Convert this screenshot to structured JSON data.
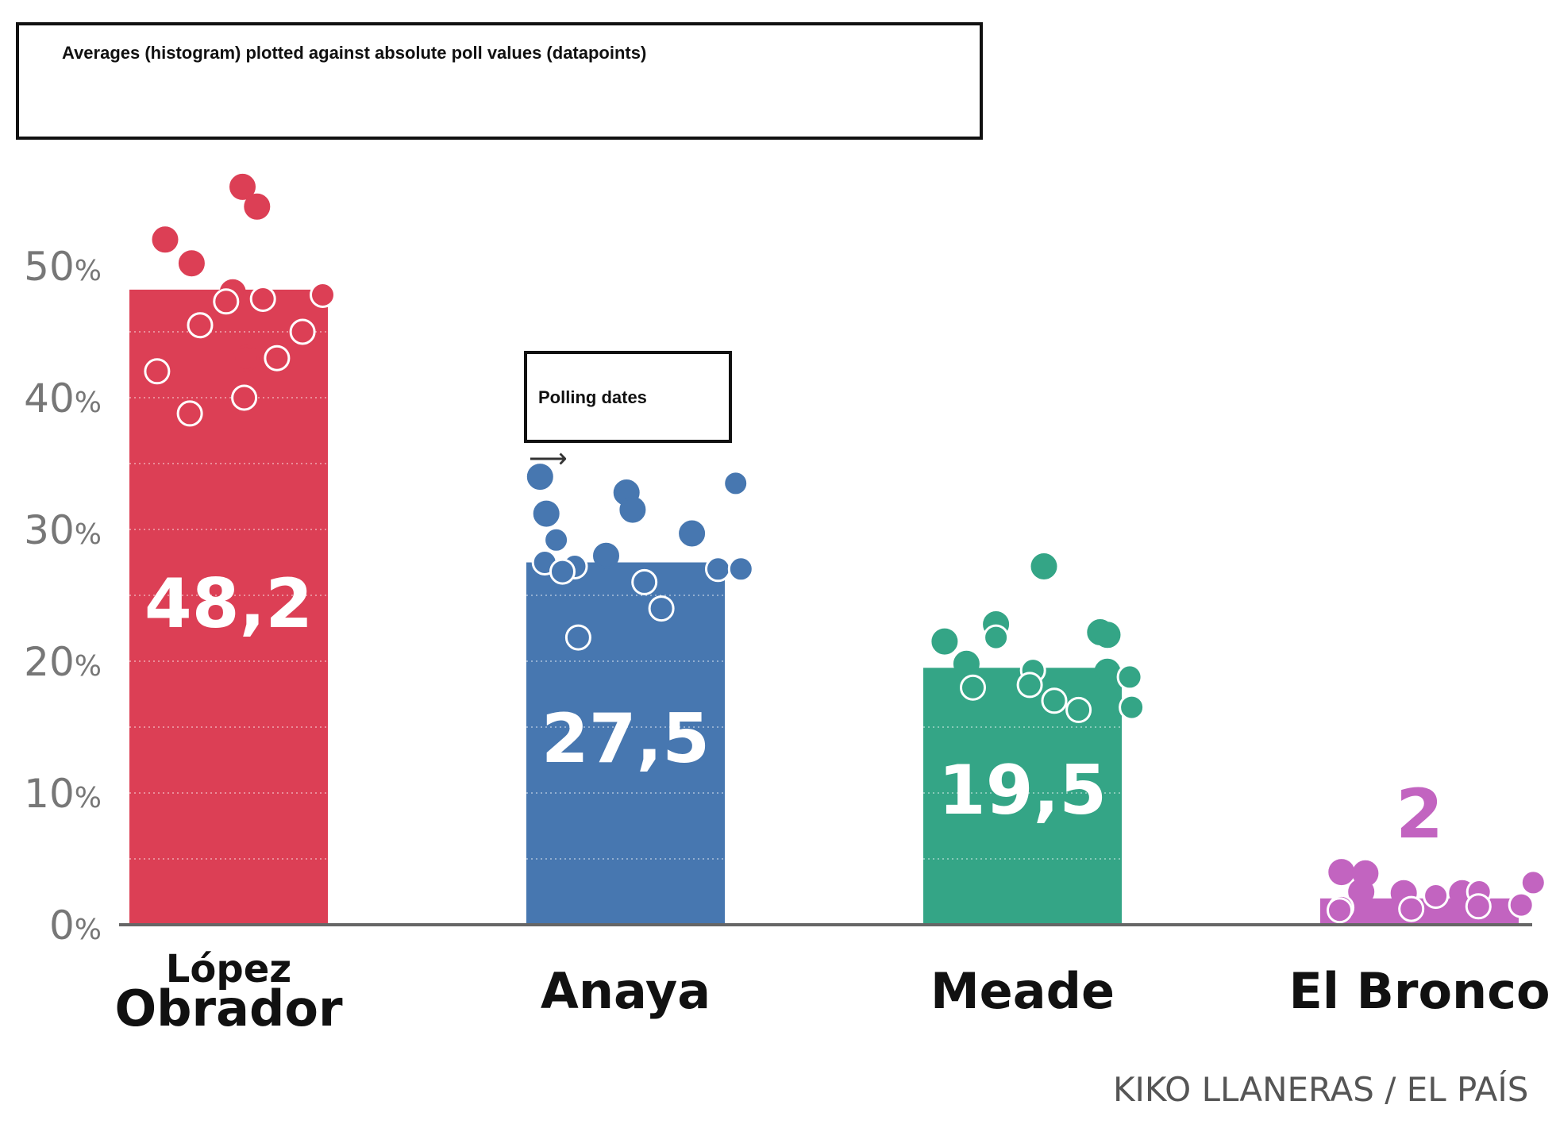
{
  "annotations": {
    "title_box": "Averages (histogram) plotted against absolute poll values (datapoints)",
    "dates_box": "Polling dates",
    "arrow_glyph": "⟶"
  },
  "credit": "KIKO LLANERAS / EL PAÍS",
  "chart_data": {
    "type": "bar",
    "categories": [
      [
        "López",
        "Obrador"
      ],
      [
        "Anaya"
      ],
      [
        "Meade"
      ],
      [
        "El Bronco"
      ]
    ],
    "values": [
      48.2,
      27.5,
      19.5,
      2
    ],
    "value_labels": [
      "48,2",
      "27,5",
      "19,5",
      "2"
    ],
    "colors": [
      "#dc3f55",
      "#4777b0",
      "#34a586",
      "#c264c0"
    ],
    "ylim": [
      0,
      60
    ],
    "yticks": [
      0,
      10,
      20,
      30,
      40,
      50
    ],
    "ytick_labels": [
      "0",
      "10",
      "20",
      "30",
      "40",
      "50"
    ],
    "ytick_unit": "%",
    "grid": "dotted horizontal lines inside bars every 5%",
    "points": [
      {
        "name": "López Obrador",
        "filled": [
          56,
          54.5,
          52,
          50.2,
          48,
          43,
          42.5
        ],
        "hollow": [
          47.8,
          47.5,
          47.3,
          45.5,
          45,
          43,
          42,
          40,
          38.8
        ]
      },
      {
        "name": "Anaya",
        "filled": [
          34,
          32.8,
          31.5,
          31.2,
          29.7,
          28
        ],
        "hollow": [
          33.5,
          29.2,
          27.5,
          27.2,
          27,
          27,
          26.8,
          26,
          24,
          21.8
        ]
      },
      {
        "name": "Meade",
        "filled": [
          27.2,
          22.8,
          22.2,
          22,
          21.5,
          19.8,
          19.2
        ],
        "hollow": [
          21.8,
          19.3,
          18.8,
          18.2,
          18,
          17,
          16.5,
          16.3
        ]
      },
      {
        "name": "El Bronco",
        "filled": [
          4,
          3.9,
          2.5,
          2.4,
          2.4
        ],
        "hollow": [
          3.2,
          2.5,
          2.2,
          1.5,
          1.4,
          1.3,
          1.2,
          1.1
        ]
      }
    ]
  }
}
